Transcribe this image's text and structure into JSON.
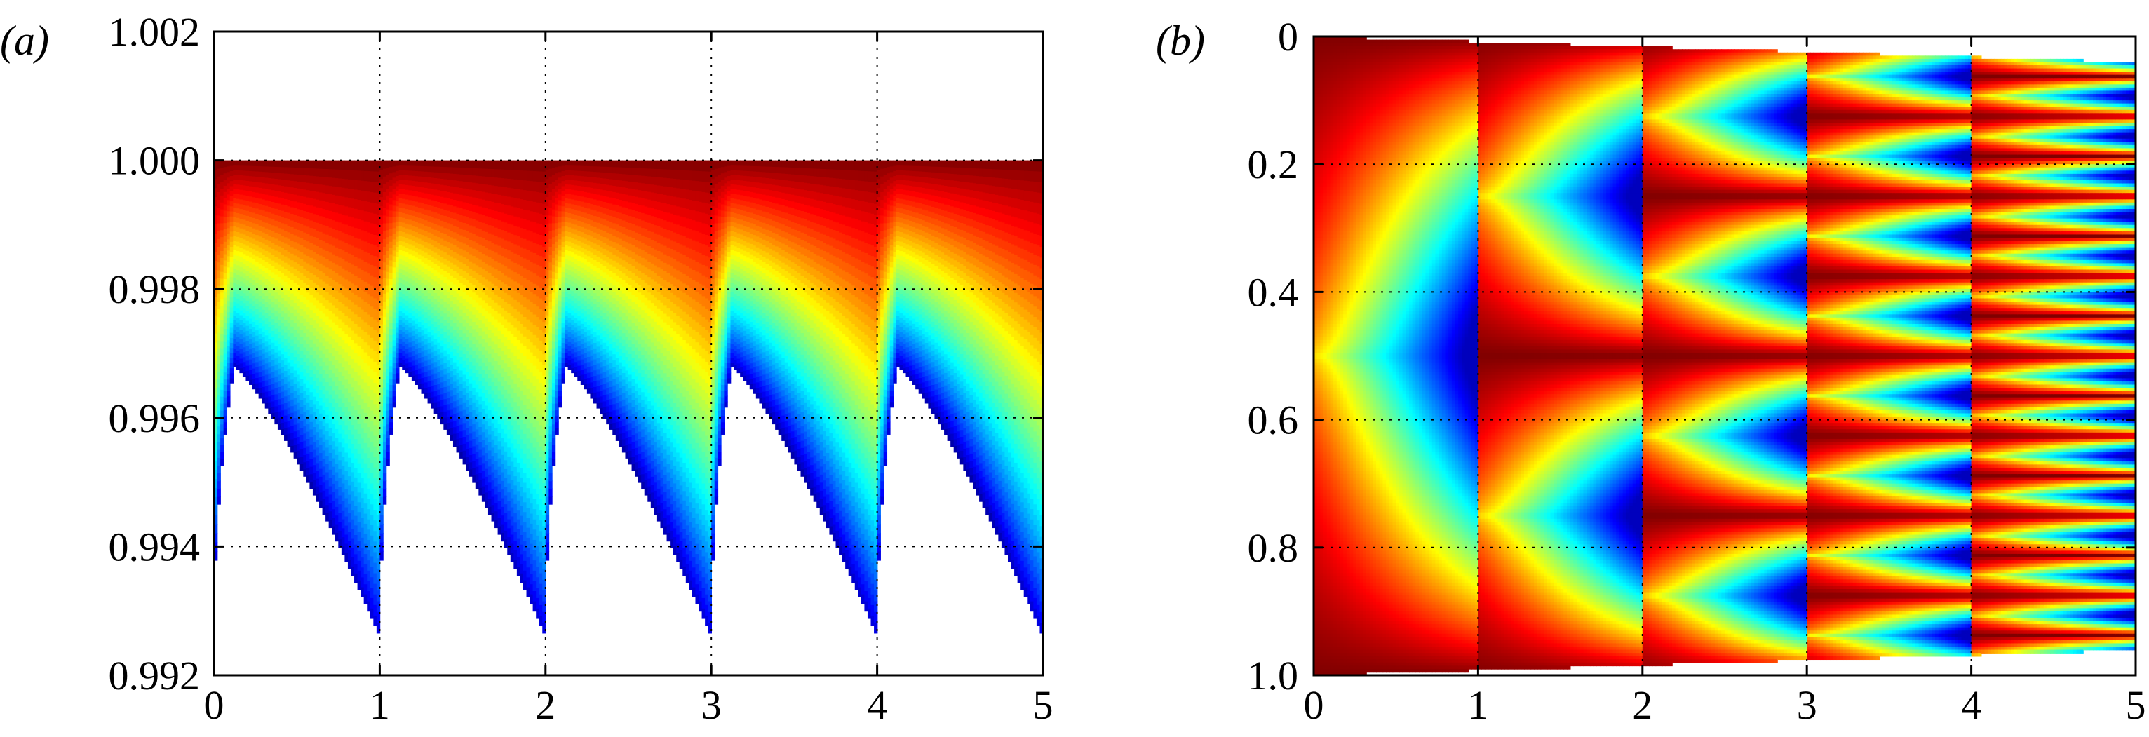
{
  "chart_data": [
    {
      "type": "heatmap",
      "panel_label": "(a)",
      "xlim": [
        0,
        5
      ],
      "ylim": [
        0.992,
        1.002
      ],
      "x_ticks": [
        {
          "value": 0,
          "label": "0"
        },
        {
          "value": 1,
          "label": "1"
        },
        {
          "value": 2,
          "label": "2"
        },
        {
          "value": 3,
          "label": "3"
        },
        {
          "value": 4,
          "label": "4"
        },
        {
          "value": 5,
          "label": "5"
        }
      ],
      "y_ticks": [
        {
          "value": 0.992,
          "label": "0.992"
        },
        {
          "value": 0.994,
          "label": "0.994"
        },
        {
          "value": 0.996,
          "label": "0.996"
        },
        {
          "value": 0.998,
          "label": "0.998"
        },
        {
          "value": 1.0,
          "label": "1.000"
        },
        {
          "value": 1.002,
          "label": "1.002"
        }
      ],
      "grid": true,
      "colormap": "jet",
      "upper_edge": 1.0,
      "cusp_minimum": 0.9926,
      "cusp_peak": 0.9968,
      "periods": 5
    },
    {
      "type": "heatmap",
      "panel_label": "(b)",
      "xlim": [
        0,
        5
      ],
      "ylim": [
        1.0,
        0
      ],
      "y_inverted": true,
      "x_ticks": [
        {
          "value": 0,
          "label": "0"
        },
        {
          "value": 1,
          "label": "1"
        },
        {
          "value": 2,
          "label": "2"
        },
        {
          "value": 3,
          "label": "3"
        },
        {
          "value": 4,
          "label": "4"
        },
        {
          "value": 5,
          "label": "5"
        }
      ],
      "y_ticks": [
        {
          "value": 0,
          "label": "0"
        },
        {
          "value": 0.2,
          "label": "0.2"
        },
        {
          "value": 0.4,
          "label": "0.4"
        },
        {
          "value": 0.6,
          "label": "0.6"
        },
        {
          "value": 0.8,
          "label": "0.8"
        },
        {
          "value": 1.0,
          "label": "1.0"
        }
      ],
      "grid": true,
      "colormap": "jet",
      "bifurcation_x": [
        1,
        2,
        3,
        4,
        5
      ]
    }
  ]
}
